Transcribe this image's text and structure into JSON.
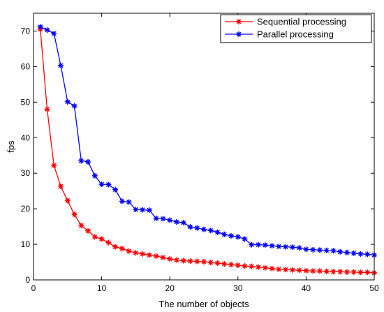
{
  "chart_data": {
    "type": "line",
    "xlabel": "The number of objects",
    "ylabel": "fps",
    "xlim": [
      0,
      50
    ],
    "ylim": [
      0,
      75
    ],
    "xticks": [
      0,
      10,
      20,
      30,
      40,
      50
    ],
    "yticks": [
      0,
      10,
      20,
      30,
      40,
      50,
      60,
      70
    ],
    "legend_position": "top-right",
    "marker": "asterisk",
    "x": [
      1,
      2,
      3,
      4,
      5,
      6,
      7,
      8,
      9,
      10,
      11,
      12,
      13,
      14,
      15,
      16,
      17,
      18,
      19,
      20,
      21,
      22,
      23,
      24,
      25,
      26,
      27,
      28,
      29,
      30,
      31,
      32,
      33,
      34,
      35,
      36,
      37,
      38,
      39,
      40,
      41,
      42,
      43,
      44,
      45,
      46,
      47,
      48,
      49,
      50
    ],
    "series": [
      {
        "name": "Sequential processing",
        "color": "#ff0000",
        "values": [
          70.5,
          48,
          32.2,
          26.3,
          22.3,
          18.4,
          15.3,
          13.8,
          12.1,
          11.5,
          10.5,
          9.3,
          8.8,
          8.1,
          7.6,
          7.3,
          7.0,
          6.7,
          6.3,
          5.9,
          5.6,
          5.4,
          5.3,
          5.2,
          5.1,
          4.9,
          4.7,
          4.5,
          4.3,
          4.1,
          3.9,
          3.8,
          3.6,
          3.4,
          3.2,
          3.0,
          2.9,
          2.8,
          2.7,
          2.6,
          2.5,
          2.5,
          2.4,
          2.3,
          2.3,
          2.2,
          2.2,
          2.1,
          2.1,
          2.0
        ]
      },
      {
        "name": "Parallel processing",
        "color": "#0000ff",
        "values": [
          71.2,
          70.3,
          69.3,
          60.3,
          50.1,
          48.9,
          33.5,
          33.2,
          29.3,
          26.9,
          26.8,
          25.4,
          22.1,
          21.9,
          19.8,
          19.7,
          19.6,
          17.3,
          17.2,
          16.8,
          16.3,
          16.1,
          14.9,
          14.6,
          14.2,
          13.9,
          13.4,
          12.8,
          12.4,
          12.1,
          11.5,
          9.9,
          9.9,
          9.8,
          9.6,
          9.4,
          9.3,
          9.2,
          9.0,
          8.6,
          8.5,
          8.4,
          8.3,
          8.2,
          7.9,
          7.7,
          7.5,
          7.3,
          7.2,
          7.0
        ]
      }
    ]
  }
}
